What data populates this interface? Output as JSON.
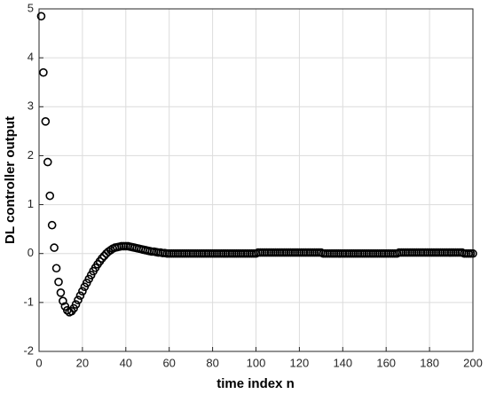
{
  "chart_data": {
    "type": "scatter",
    "xlabel": "time index n",
    "ylabel": "DL controller output",
    "xlim": [
      0,
      200
    ],
    "xticks": [
      0,
      20,
      40,
      60,
      80,
      100,
      120,
      140,
      160,
      180,
      200
    ],
    "ylim": [
      -2,
      5
    ],
    "yticks": [
      -2,
      -1,
      0,
      1,
      2,
      3,
      4,
      5
    ],
    "grid": true,
    "color": "#000000",
    "x": [
      1,
      2,
      3,
      4,
      5,
      6,
      7,
      8,
      9,
      10,
      11,
      12,
      13,
      14,
      15,
      16,
      17,
      18,
      19,
      20,
      21,
      22,
      23,
      24,
      25,
      26,
      27,
      28,
      29,
      30,
      31,
      32,
      33,
      34,
      35,
      36,
      37,
      38,
      39,
      40,
      41,
      42,
      43,
      44,
      45,
      46,
      47,
      48,
      49,
      50,
      51,
      52,
      53,
      54,
      55,
      56,
      57,
      58,
      59,
      60,
      61,
      62,
      63,
      64,
      65,
      66,
      67,
      68,
      69,
      70,
      71,
      72,
      73,
      74,
      75,
      76,
      77,
      78,
      79,
      80,
      81,
      82,
      83,
      84,
      85,
      86,
      87,
      88,
      89,
      90,
      91,
      92,
      93,
      94,
      95,
      96,
      97,
      98,
      99,
      100,
      101,
      102,
      103,
      104,
      105,
      106,
      107,
      108,
      109,
      110,
      111,
      112,
      113,
      114,
      115,
      116,
      117,
      118,
      119,
      120,
      121,
      122,
      123,
      124,
      125,
      126,
      127,
      128,
      129,
      130,
      131,
      132,
      133,
      134,
      135,
      136,
      137,
      138,
      139,
      140,
      141,
      142,
      143,
      144,
      145,
      146,
      147,
      148,
      149,
      150,
      151,
      152,
      153,
      154,
      155,
      156,
      157,
      158,
      159,
      160,
      161,
      162,
      163,
      164,
      165,
      166,
      167,
      168,
      169,
      170,
      171,
      172,
      173,
      174,
      175,
      176,
      177,
      178,
      179,
      180,
      181,
      182,
      183,
      184,
      185,
      186,
      187,
      188,
      189,
      190,
      191,
      192,
      193,
      194,
      195,
      196,
      197,
      198,
      199,
      200
    ],
    "values": [
      4.85,
      3.7,
      2.7,
      1.87,
      1.18,
      0.58,
      0.12,
      -0.3,
      -0.58,
      -0.8,
      -0.97,
      -1.08,
      -1.16,
      -1.2,
      -1.18,
      -1.12,
      -1.04,
      -0.95,
      -0.86,
      -0.77,
      -0.68,
      -0.6,
      -0.52,
      -0.44,
      -0.36,
      -0.29,
      -0.22,
      -0.16,
      -0.1,
      -0.05,
      0,
      0.04,
      0.07,
      0.1,
      0.12,
      0.13,
      0.14,
      0.15,
      0.15,
      0.15,
      0.15,
      0.14,
      0.13,
      0.12,
      0.11,
      0.1,
      0.09,
      0.08,
      0.07,
      0.06,
      0.05,
      0.04,
      0.04,
      0.03,
      0.02,
      0.02,
      0.01,
      0.01,
      0,
      0,
      0,
      0,
      0,
      0,
      0,
      0,
      0,
      0,
      0,
      0,
      0,
      0,
      0,
      0,
      0,
      0,
      0,
      0,
      0,
      0,
      0,
      0,
      0,
      0,
      0,
      0,
      0,
      0,
      0,
      0,
      0,
      0,
      0,
      0,
      0,
      0,
      0,
      0,
      0,
      0,
      0.02,
      0.02,
      0.02,
      0.02,
      0.02,
      0.02,
      0.02,
      0.02,
      0.02,
      0.02,
      0.02,
      0.02,
      0.02,
      0.02,
      0.02,
      0.02,
      0.02,
      0.02,
      0.02,
      0.02,
      0.02,
      0.02,
      0.02,
      0.02,
      0.02,
      0.02,
      0.02,
      0.02,
      0.02,
      0.02,
      0,
      0,
      0,
      0,
      0,
      0,
      0,
      0,
      0,
      0,
      0,
      0,
      0,
      0,
      0,
      0,
      0,
      0,
      0,
      0,
      0,
      0,
      0,
      0,
      0,
      0,
      0,
      0,
      0,
      0,
      0,
      0,
      0,
      0,
      0,
      0.02,
      0.02,
      0.02,
      0.02,
      0.02,
      0.02,
      0.02,
      0.02,
      0.02,
      0.02,
      0.02,
      0.02,
      0.02,
      0.02,
      0.02,
      0.02,
      0.02,
      0.02,
      0.02,
      0.02,
      0.02,
      0.02,
      0.02,
      0.02,
      0.02,
      0.02,
      0.02,
      0.02,
      0.02,
      0.02,
      0,
      0,
      0,
      0,
      0
    ]
  }
}
